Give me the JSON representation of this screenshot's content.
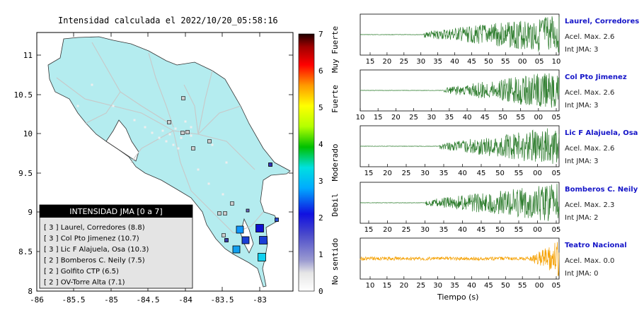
{
  "map": {
    "title": "Intensidad calculada el 2022/10/20_05:58:16",
    "lon_ticks": [
      "-86",
      "-85.5",
      "-85",
      "-84.5",
      "-84",
      "-83.5",
      "-83"
    ],
    "lat_ticks": [
      "11",
      "10.5",
      "10",
      "9.5",
      "9",
      "8.5",
      "8"
    ],
    "colors": {
      "land": "#b4ecef",
      "water": "#ffffff",
      "roads": "#cfcfcf",
      "border": "#333333"
    }
  },
  "colorbar": {
    "ticks": [
      "0",
      "1",
      "2",
      "3",
      "4",
      "5",
      "6",
      "7"
    ],
    "labels": [
      "No sentido",
      "Debil",
      "Moderado",
      "Fuerte",
      "Muy Fuerte"
    ]
  },
  "legend": {
    "title": "INTENSIDAD JMA [0 a 7]",
    "items": [
      "[ 3 ]  Laurel, Corredores (8.8)",
      "[ 3 ]  Col Pto Jimenez (10.7)",
      "[ 3 ]  Lic F Alajuela, Osa (10.3)",
      "[ 2 ]  Bomberos C. Neily (7.5)",
      "[ 2 ]  Golfito CTP (6.5)",
      "[ 2 ]  OV-Torre Alta (7.1)"
    ]
  },
  "stations": [
    {
      "name": "Laurel, Corredores",
      "acel": "Acel. Max. 2.6",
      "int": "Int JMA: 3",
      "wave_color": "#2e7d2e",
      "start": 0.32,
      "ticks": [
        "15",
        "20",
        "25",
        "30",
        "35",
        "40",
        "45",
        "50",
        "55",
        "00",
        "05",
        "10"
      ]
    },
    {
      "name": "Col Pto Jimenez",
      "acel": "Acel. Max. 2.6",
      "int": "Int JMA: 3",
      "wave_color": "#2e7d2e",
      "start": 0.42,
      "ticks": [
        "10",
        "15",
        "20",
        "25",
        "30",
        "35",
        "40",
        "45",
        "50",
        "55",
        "00",
        "05"
      ]
    },
    {
      "name": "Lic F Alajuela, Osa",
      "acel": "Acel. Max. 2.6",
      "int": "Int JMA: 3",
      "wave_color": "#2e7d2e",
      "start": 0.4,
      "ticks": [
        "15",
        "20",
        "25",
        "30",
        "35",
        "40",
        "45",
        "50",
        "55",
        "00",
        "05"
      ]
    },
    {
      "name": "Bomberos C. Neily",
      "acel": "Acel. Max. 2.3",
      "int": "Int JMA: 2",
      "wave_color": "#2e7d2e",
      "start": 0.33,
      "ticks": [
        "15",
        "20",
        "25",
        "30",
        "35",
        "40",
        "45",
        "50",
        "55",
        "00",
        "05"
      ]
    },
    {
      "name": "Teatro Nacional",
      "acel": "Acel. Max. 0.0",
      "int": "Int JMA: 0",
      "wave_color": "#f5a000",
      "start": 0.0,
      "ticks": [
        "10",
        "15",
        "20",
        "25",
        "30",
        "35",
        "40",
        "45",
        "50",
        "55",
        "00",
        "05"
      ]
    }
  ],
  "seismo": {
    "xlabel": "Tiempo (s)"
  }
}
